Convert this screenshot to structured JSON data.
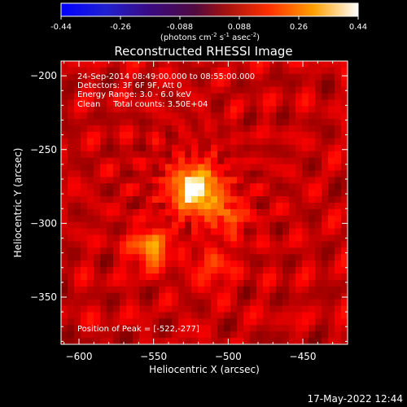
{
  "colorbar": {
    "ticks": [
      "-0.44",
      "-0.26",
      "-0.088",
      "0.088",
      "0.26",
      "0.44"
    ],
    "units_main": "(photons cm",
    "units_sup1": "-2",
    "units_mid": " s",
    "units_sup2": "-1",
    "units_end": " asec",
    "units_sup3": "-2",
    "units_close": ")",
    "range": [
      -0.44,
      0.44
    ]
  },
  "title": "Reconstructed RHESSI Image",
  "info": {
    "line1": "24-Sep-2014 08:49:00.000 to 08:55:00.000",
    "line2": "Detectors: 3F 6F 9F, Att 0",
    "line3": "Energy Range: 3.0 - 6.0 keV",
    "line4": "Clean     Total counts: 3.50E+04"
  },
  "peak_label": "Position of Peak = [-522,-277]",
  "timestamp": "17-May-2022 12:44",
  "chart_data": {
    "type": "heatmap",
    "title": "Reconstructed RHESSI Image",
    "xlabel": "Heliocentric X (arcsec)",
    "ylabel": "Heliocentric Y (arcsec)",
    "xlim": [
      -612,
      -420
    ],
    "ylim": [
      -382,
      -190
    ],
    "x_ticks": [
      {
        "value": -600,
        "label": "−600"
      },
      {
        "value": -550,
        "label": "−550"
      },
      {
        "value": -500,
        "label": "−500"
      },
      {
        "value": -450,
        "label": "−450"
      }
    ],
    "y_ticks": [
      {
        "value": -200,
        "label": "−200"
      },
      {
        "value": -250,
        "label": "−250"
      },
      {
        "value": -300,
        "label": "−300"
      },
      {
        "value": -350,
        "label": "−350"
      }
    ],
    "sources": [
      {
        "x": -522,
        "y": -277,
        "value": 0.44
      },
      {
        "x": -552,
        "y": -317,
        "value": 0.3
      },
      {
        "x": -500,
        "y": -295,
        "value": 0.22
      },
      {
        "x": -510,
        "y": -330,
        "value": 0.2
      }
    ],
    "background": 0.1,
    "colormap": [
      "#000000",
      "#ff0000",
      "#ffa000",
      "#ffffff"
    ]
  }
}
